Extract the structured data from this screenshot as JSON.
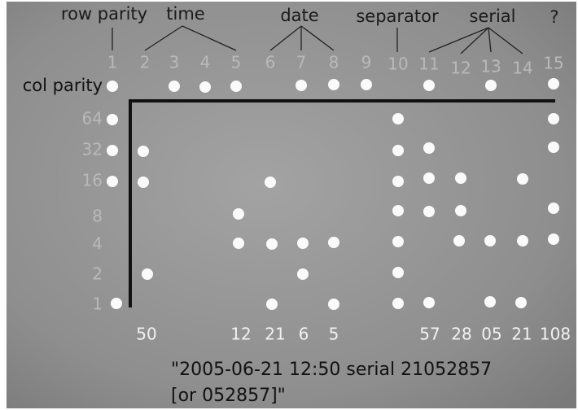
{
  "top_labels": [
    "row parity",
    "time",
    "date",
    "separator",
    "serial",
    "?"
  ],
  "column_numbers": [
    "1",
    "2",
    "3",
    "4",
    "5",
    "6",
    "7",
    "8",
    "9",
    "10",
    "11",
    "12",
    "13",
    "14",
    "15"
  ],
  "row_labels": [
    "col parity",
    "64",
    "32",
    "16",
    "8",
    "4",
    "2",
    "1"
  ],
  "column_values": [
    "50",
    "12",
    "21",
    "6",
    "5",
    "57",
    "28",
    "05",
    "21",
    "108"
  ],
  "caption": [
    "\"2005-06-21 12:50 serial 21052857",
    "[or 052857]\""
  ]
}
